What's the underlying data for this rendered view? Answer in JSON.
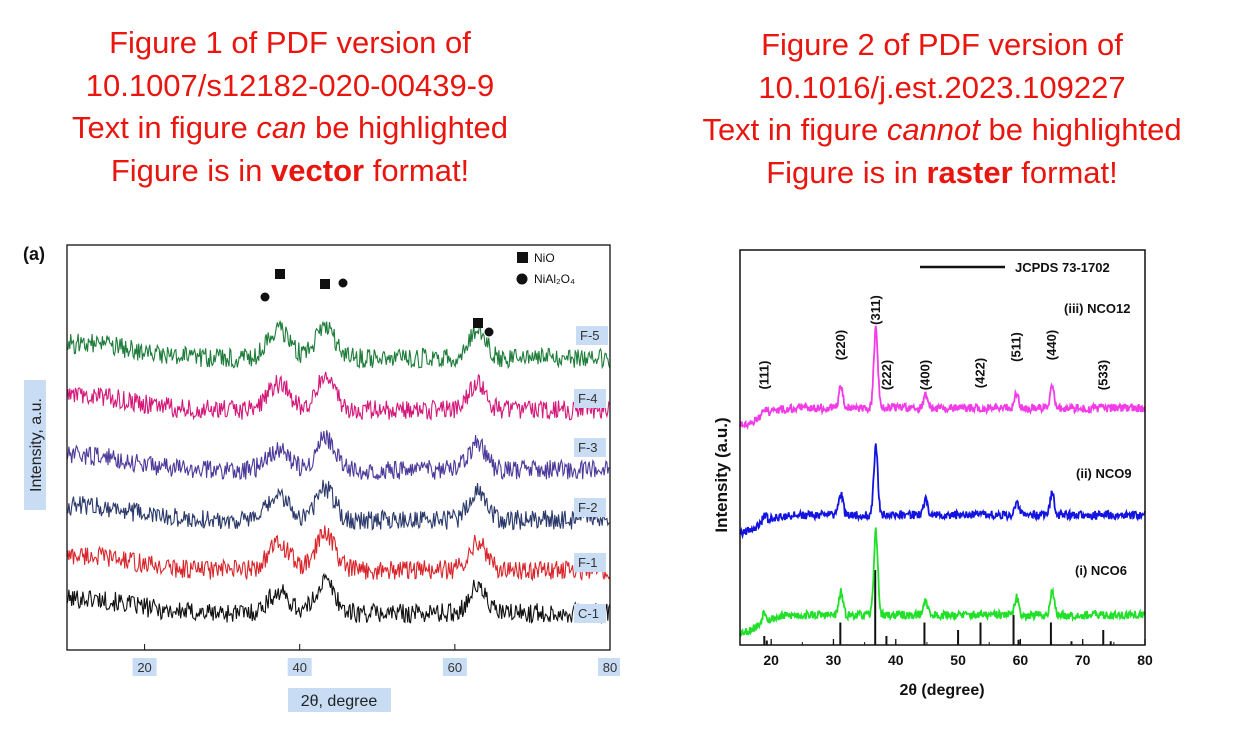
{
  "captions": [
    {
      "line1": "Figure 1 of PDF version of",
      "line2": "10.1007/s12182-020-00439-9",
      "line3_pre": "Text in figure ",
      "line3_em": "can",
      "line3_post": " be highlighted",
      "line4_pre": "Figure is in ",
      "line4_bold": "vector",
      "line4_post": " format!"
    },
    {
      "line1": "Figure 2 of PDF version of",
      "line2": "10.1016/j.est.2023.109227",
      "line3_pre": "Text in figure ",
      "line3_em": "cannot",
      "line3_post": " be highlighted",
      "line4_pre": "Figure is in ",
      "line4_bold": "raster",
      "line4_post": " format!"
    }
  ],
  "colors": {
    "caption": "#e8160f",
    "highlight": "#c8dcf4"
  },
  "chart_data": [
    {
      "type": "line",
      "panel_label": "(a)",
      "xlabel": "2θ, degree",
      "ylabel": "Intensity, a.u.",
      "xlim": [
        10,
        80
      ],
      "xticks": [
        "20",
        "40",
        "60",
        "80"
      ],
      "y_ticks_shown": false,
      "series": [
        {
          "name": "C-1",
          "color": "#111111",
          "peaks": [
            [
              37.3,
              0.35
            ],
            [
              43.3,
              0.55
            ],
            [
              62.9,
              0.45
            ]
          ]
        },
        {
          "name": "F-1",
          "color": "#d8262c",
          "peaks": [
            [
              37.3,
              0.45
            ],
            [
              43.3,
              0.65
            ],
            [
              62.9,
              0.5
            ]
          ]
        },
        {
          "name": "F-2",
          "color": "#2c3a6b",
          "peaks": [
            [
              37.3,
              0.4
            ],
            [
              43.3,
              0.55
            ],
            [
              62.9,
              0.5
            ]
          ]
        },
        {
          "name": "F-3",
          "color": "#4e3a9a",
          "peaks": [
            [
              37.3,
              0.35
            ],
            [
              43.3,
              0.55
            ],
            [
              62.9,
              0.45
            ]
          ]
        },
        {
          "name": "F-4",
          "color": "#d4187a",
          "peaks": [
            [
              37.3,
              0.45
            ],
            [
              43.3,
              0.6
            ],
            [
              62.9,
              0.45
            ]
          ]
        },
        {
          "name": "F-5",
          "color": "#1e7d3a",
          "peaks": [
            [
              37.3,
              0.5
            ],
            [
              43.3,
              0.55
            ],
            [
              62.9,
              0.5
            ]
          ]
        }
      ],
      "legend": [
        {
          "symbol": "square",
          "label": "NiO"
        },
        {
          "symbol": "circle",
          "label": "NiAl₂O₄"
        }
      ],
      "legend_position": "top-right"
    },
    {
      "type": "line",
      "xlabel": "2θ (degree)",
      "ylabel": "Intensity (a.u.)",
      "xlim": [
        15,
        80
      ],
      "xticks": [
        "20",
        "30",
        "40",
        "50",
        "60",
        "70",
        "80"
      ],
      "y_ticks_shown": false,
      "reference": {
        "name": "JCPDS 73-1702",
        "lines": [
          [
            18.9,
            0.12
          ],
          [
            19.3,
            0.06
          ],
          [
            31.1,
            0.3
          ],
          [
            36.7,
            1.0
          ],
          [
            38.5,
            0.12
          ],
          [
            44.6,
            0.3
          ],
          [
            50.0,
            0.2
          ],
          [
            53.6,
            0.3
          ],
          [
            58.9,
            0.4
          ],
          [
            59.7,
            0.07
          ],
          [
            64.9,
            0.3
          ],
          [
            68.2,
            0.05
          ],
          [
            73.3,
            0.2
          ],
          [
            74.5,
            0.05
          ]
        ]
      },
      "series": [
        {
          "name": "(i) NCO6",
          "color": "#22e02a",
          "peaks": [
            [
              18.9,
              0.3
            ],
            [
              31.2,
              0.6
            ],
            [
              36.8,
              2.2
            ],
            [
              44.8,
              0.4
            ],
            [
              59.4,
              0.45
            ],
            [
              65.1,
              0.65
            ]
          ]
        },
        {
          "name": "(ii) NCO9",
          "color": "#1414e0",
          "peaks": [
            [
              18.9,
              0.2
            ],
            [
              31.2,
              0.6
            ],
            [
              36.8,
              1.8
            ],
            [
              44.8,
              0.4
            ],
            [
              59.4,
              0.35
            ],
            [
              65.1,
              0.6
            ]
          ]
        },
        {
          "name": "(iii) NCO12",
          "color": "#f23ce8",
          "peaks": [
            [
              18.9,
              0.2
            ],
            [
              31.2,
              0.6
            ],
            [
              36.8,
              2.1
            ],
            [
              44.8,
              0.35
            ],
            [
              59.4,
              0.4
            ],
            [
              65.1,
              0.55
            ]
          ]
        }
      ],
      "peak_labels": [
        {
          "label": "(111)",
          "x": 18.9
        },
        {
          "label": "(220)",
          "x": 31.2
        },
        {
          "label": "(311)",
          "x": 36.8
        },
        {
          "label": "(222)",
          "x": 38.6
        },
        {
          "label": "(400)",
          "x": 44.8
        },
        {
          "label": "(422)",
          "x": 53.6
        },
        {
          "label": "(511)",
          "x": 59.4
        },
        {
          "label": "(440)",
          "x": 65.1
        },
        {
          "label": "(533)",
          "x": 73.3
        }
      ]
    }
  ]
}
